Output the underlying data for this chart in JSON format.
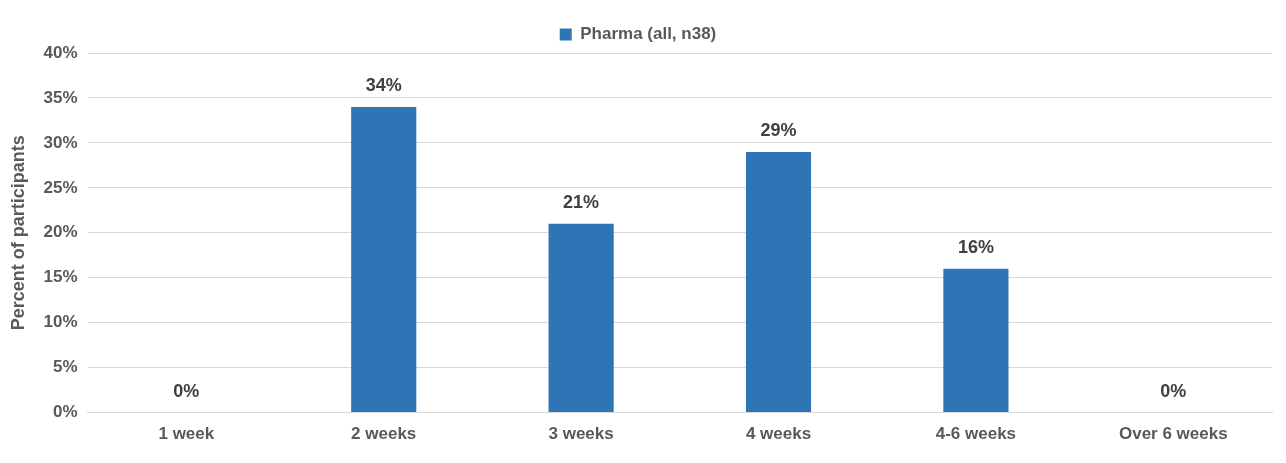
{
  "chart_data": {
    "type": "bar",
    "ylabel": "Percent of participants",
    "categories": [
      "1 week",
      "2 weeks",
      "3 weeks",
      "4 weeks",
      "4-6 weeks",
      "Over 6 weeks"
    ],
    "series": [
      {
        "name": "Pharma (all, n38)",
        "color": "#2e75b6",
        "values": [
          0,
          34,
          21,
          29,
          16,
          0
        ],
        "value_labels": [
          "0%",
          "34%",
          "21%",
          "29%",
          "16%",
          "0%"
        ]
      }
    ],
    "ylim": [
      0,
      40
    ],
    "yticks": [
      {
        "value": 0,
        "label": "0%"
      },
      {
        "value": 5,
        "label": "5%"
      },
      {
        "value": 10,
        "label": "10%"
      },
      {
        "value": 15,
        "label": "15%"
      },
      {
        "value": 20,
        "label": "20%"
      },
      {
        "value": 25,
        "label": "25%"
      },
      {
        "value": 30,
        "label": "30%"
      },
      {
        "value": 35,
        "label": "35%"
      },
      {
        "value": 40,
        "label": "40%"
      }
    ],
    "grid": "y",
    "legend": "top"
  }
}
